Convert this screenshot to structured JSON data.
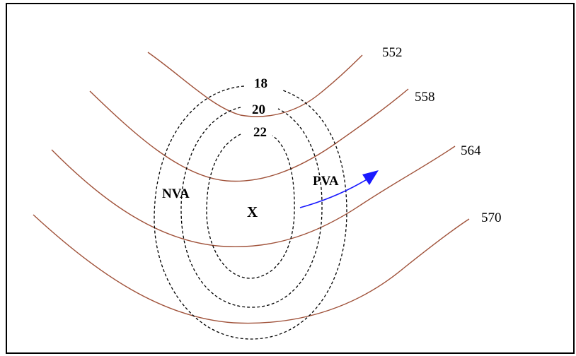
{
  "height_contours": [
    "552",
    "558",
    "564",
    "570"
  ],
  "vorticity_contours": [
    "18",
    "20",
    "22"
  ],
  "regions": {
    "nva": "NVA",
    "pva": "PVA"
  },
  "center": "X",
  "colors": {
    "height_line": "#a0523a",
    "vorticity_line": "#000000",
    "arrow": "#1a1aff"
  }
}
